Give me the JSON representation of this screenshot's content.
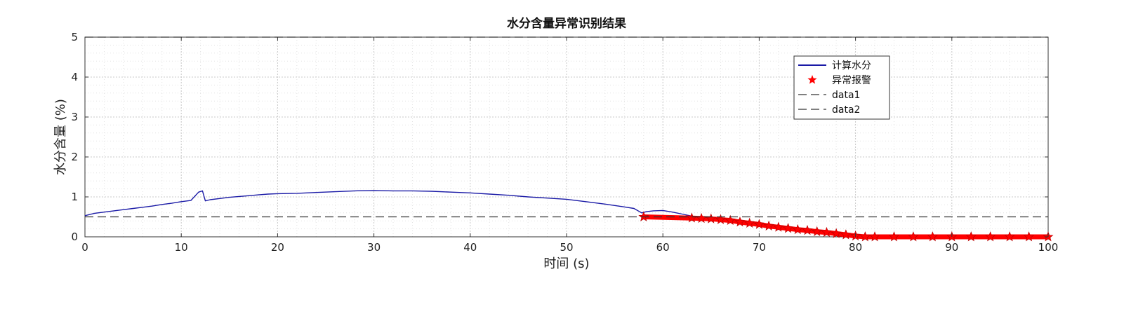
{
  "chart_data": {
    "type": "line",
    "title": "水分含量异常识别结果",
    "xlabel": "时间 (s)",
    "ylabel": "水分含量 (%)",
    "xlim": [
      0,
      100
    ],
    "ylim": [
      0,
      5
    ],
    "xticks": [
      "0",
      "10",
      "20",
      "30",
      "40",
      "50",
      "60",
      "70",
      "80",
      "90",
      "100"
    ],
    "yticks": [
      "0",
      "1",
      "2",
      "3",
      "4",
      "5"
    ],
    "grid": "on (major and minor, dotted)",
    "legend_position": "top-right",
    "series": [
      {
        "name": "计算水分",
        "kind": "line",
        "color": "#1a1aa6",
        "x": [
          0,
          1,
          2,
          3,
          4,
          5,
          6,
          7,
          8,
          9,
          10,
          11,
          11.8,
          12.2,
          12.5,
          13,
          14,
          15,
          16,
          17,
          18,
          19,
          20,
          22,
          24,
          26,
          28,
          30,
          32,
          34,
          36,
          38,
          40,
          42,
          44,
          46,
          48,
          50,
          52,
          54,
          56,
          57,
          57.8,
          58.3,
          59,
          60,
          61,
          62,
          63
        ],
        "y": [
          0.53,
          0.59,
          0.62,
          0.65,
          0.68,
          0.71,
          0.74,
          0.77,
          0.81,
          0.84,
          0.88,
          0.91,
          1.12,
          1.15,
          0.9,
          0.93,
          0.96,
          0.99,
          1.01,
          1.03,
          1.05,
          1.07,
          1.08,
          1.09,
          1.11,
          1.13,
          1.15,
          1.16,
          1.15,
          1.15,
          1.14,
          1.12,
          1.1,
          1.07,
          1.04,
          1.0,
          0.97,
          0.94,
          0.88,
          0.82,
          0.75,
          0.71,
          0.6,
          0.63,
          0.65,
          0.66,
          0.62,
          0.57,
          0.52
        ]
      },
      {
        "name": "异常报警",
        "kind": "markers",
        "marker": "star",
        "color": "#ff0000",
        "x": [
          58,
          63,
          64,
          65,
          66,
          67,
          68,
          69,
          70,
          71,
          72,
          73,
          74,
          75,
          76,
          77,
          78,
          79,
          80,
          81,
          82,
          84,
          86,
          88,
          90,
          92,
          94,
          96,
          98,
          100
        ],
        "y": [
          0.5,
          0.47,
          0.46,
          0.45,
          0.43,
          0.41,
          0.37,
          0.34,
          0.31,
          0.27,
          0.24,
          0.21,
          0.18,
          0.16,
          0.13,
          0.11,
          0.08,
          0.05,
          0.02,
          0.0,
          0.0,
          0.0,
          0.0,
          0.0,
          0.0,
          0.0,
          0.0,
          0.0,
          0.0,
          0.0
        ]
      },
      {
        "name": "data1",
        "kind": "dashed",
        "color": "#333333",
        "x": [
          0,
          100
        ],
        "y": [
          0.5,
          0.5
        ]
      },
      {
        "name": "data2",
        "kind": "dashed",
        "color": "#333333",
        "x": [
          0,
          100
        ],
        "y": [
          5.0,
          5.0
        ]
      }
    ]
  }
}
